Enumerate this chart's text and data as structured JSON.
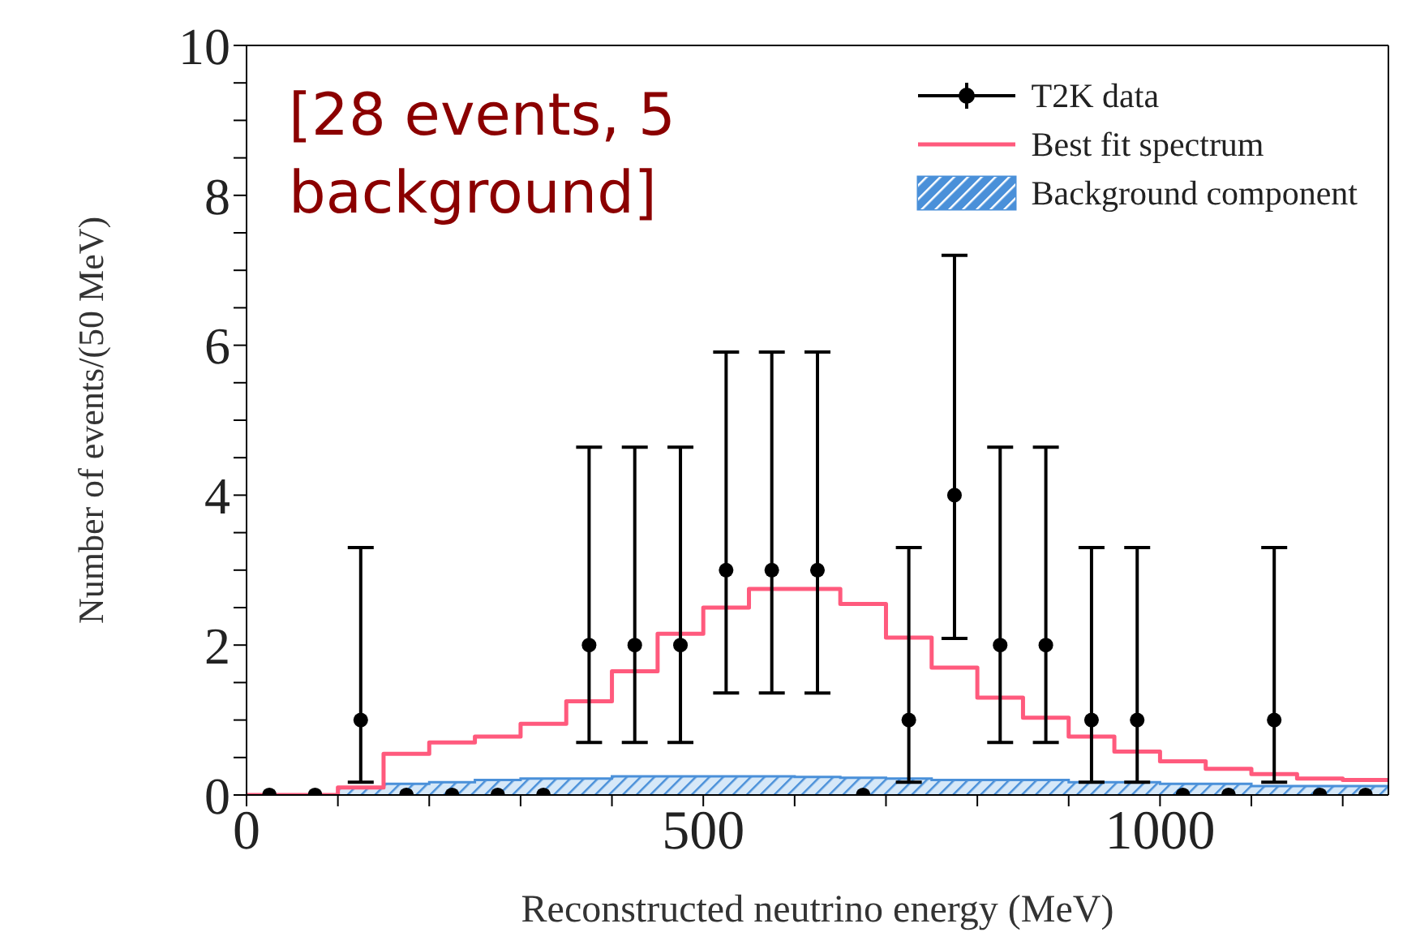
{
  "chart_data": {
    "type": "scatter",
    "xlabel": "Reconstructed neutrino energy (MeV)",
    "ylabel": "Number of events/(50 MeV)",
    "annotations": [
      "[28 events, 5 background]"
    ],
    "xlim": [
      0,
      1250
    ],
    "xticks": [
      0,
      {
        "value": 100,
        "label": null
      },
      {
        "value": 200,
        "label": null
      },
      {
        "value": 300,
        "label": null
      },
      {
        "value": 400,
        "label": null
      },
      500,
      {
        "value": 600,
        "label": null
      },
      {
        "value": 700,
        "label": null
      },
      {
        "value": 800,
        "label": null
      },
      {
        "value": 900,
        "label": null
      },
      1000,
      {
        "value": 1100,
        "label": null
      },
      {
        "value": 1200,
        "label": null
      }
    ],
    "ylim": [
      0,
      10
    ],
    "yticks": [
      0,
      {
        "value": 0.5,
        "label": null
      },
      {
        "value": 1,
        "label": null
      },
      {
        "value": 1.5,
        "label": null
      },
      2,
      {
        "value": 2.5,
        "label": null
      },
      {
        "value": 3,
        "label": null
      },
      {
        "value": 3.5,
        "label": null
      },
      4,
      {
        "value": 4.5,
        "label": null
      },
      {
        "value": 5,
        "label": null
      },
      {
        "value": 5.5,
        "label": null
      },
      6,
      {
        "value": 6.5,
        "label": null
      },
      {
        "value": 7,
        "label": null
      },
      {
        "value": 7.5,
        "label": null
      },
      8,
      {
        "value": 8.5,
        "label": null
      },
      {
        "value": 9,
        "label": null
      },
      {
        "value": 9.5,
        "label": null
      },
      10
    ],
    "legend": "top right",
    "series": [
      {
        "name": "T2K data",
        "type": "scatter",
        "color": "#000000",
        "marker": "circle",
        "x": [
          25,
          75,
          125,
          175,
          225,
          275,
          325,
          375,
          425,
          475,
          525,
          575,
          625,
          675,
          725,
          775,
          825,
          875,
          925,
          975,
          1025,
          1075,
          1125,
          1175,
          1225
        ],
        "values": [
          0,
          0,
          1,
          0,
          0,
          0,
          0,
          2,
          2,
          2,
          3,
          3,
          3,
          0,
          1,
          4,
          2,
          2,
          1,
          1,
          0,
          0,
          1,
          0,
          0
        ],
        "errors": [
          null,
          null,
          [
            0.17,
            3.3
          ],
          null,
          null,
          null,
          null,
          [
            0.7,
            4.64
          ],
          [
            0.7,
            4.64
          ],
          [
            0.7,
            4.64
          ],
          [
            1.36,
            5.91
          ],
          [
            1.36,
            5.91
          ],
          [
            1.36,
            5.91
          ],
          null,
          [
            0.17,
            3.3
          ],
          [
            2.09,
            7.2
          ],
          [
            0.7,
            4.64
          ],
          [
            0.7,
            4.64
          ],
          [
            0.17,
            3.3
          ],
          [
            0.17,
            3.3
          ],
          null,
          null,
          [
            0.17,
            3.3
          ],
          null,
          null
        ]
      },
      {
        "name": "Best fit spectrum",
        "type": "step",
        "color": "#ff5a7d",
        "x": [
          0,
          50,
          100,
          150,
          200,
          250,
          300,
          350,
          400,
          450,
          500,
          550,
          600,
          650,
          700,
          750,
          800,
          850,
          900,
          950,
          1000,
          1050,
          1100,
          1150,
          1200,
          1250
        ],
        "values": [
          0,
          0,
          0.1,
          0.55,
          0.7,
          0.78,
          0.95,
          1.25,
          1.65,
          2.15,
          2.5,
          2.75,
          2.75,
          2.55,
          2.1,
          1.7,
          1.3,
          1.03,
          0.78,
          0.58,
          0.45,
          0.35,
          0.28,
          0.22,
          0.2,
          0.2
        ]
      },
      {
        "name": "Background component",
        "type": "area",
        "color": "#4a90d9",
        "x": [
          0,
          50,
          100,
          150,
          200,
          250,
          300,
          350,
          400,
          450,
          500,
          550,
          600,
          650,
          700,
          750,
          800,
          850,
          900,
          950,
          1000,
          1050,
          1100,
          1150,
          1200,
          1250
        ],
        "values": [
          0,
          0,
          0.1,
          0.15,
          0.17,
          0.2,
          0.22,
          0.22,
          0.25,
          0.25,
          0.25,
          0.25,
          0.24,
          0.23,
          0.22,
          0.2,
          0.2,
          0.2,
          0.17,
          0.17,
          0.15,
          0.15,
          0.12,
          0.12,
          0.12,
          0.12
        ]
      }
    ]
  }
}
